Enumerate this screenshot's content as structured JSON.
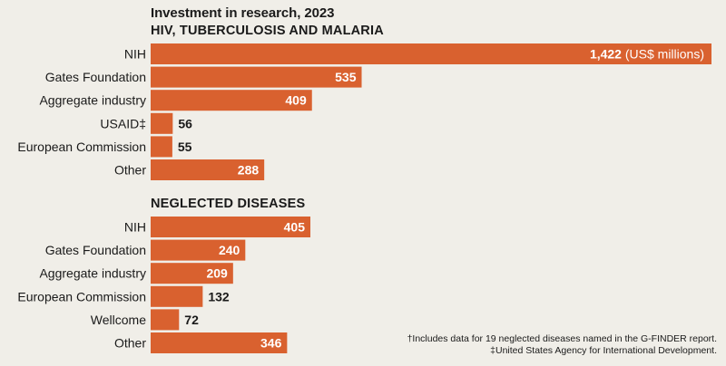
{
  "chart_data": {
    "type": "bar",
    "orientation": "horizontal",
    "title": "Investment in research, 2023",
    "unit_label": "(US$ millions)",
    "bar_color": "#d9612f",
    "groups": [
      {
        "title": "HIV, TUBERCULOSIS AND MALARIA",
        "categories": [
          "NIH",
          "Gates Foundation",
          "Aggregate industry",
          "USAID‡",
          "European Commission",
          "Other"
        ],
        "values": [
          1422,
          535,
          409,
          56,
          55,
          288
        ],
        "labels": [
          "1,422",
          "535",
          "409",
          "56",
          "55",
          "288"
        ]
      },
      {
        "title": "NEGLECTED DISEASES",
        "categories": [
          "NIH",
          "Gates Foundation",
          "Aggregate industry",
          "European Commission",
          "Wellcome",
          "Other"
        ],
        "values": [
          405,
          240,
          209,
          132,
          72,
          346
        ],
        "labels": [
          "405",
          "240",
          "209",
          "132",
          "72",
          "346"
        ]
      }
    ]
  },
  "footnotes": [
    "†Includes data for 19 neglected diseases named in the G-FINDER report.",
    "‡United States Agency for International Development."
  ]
}
